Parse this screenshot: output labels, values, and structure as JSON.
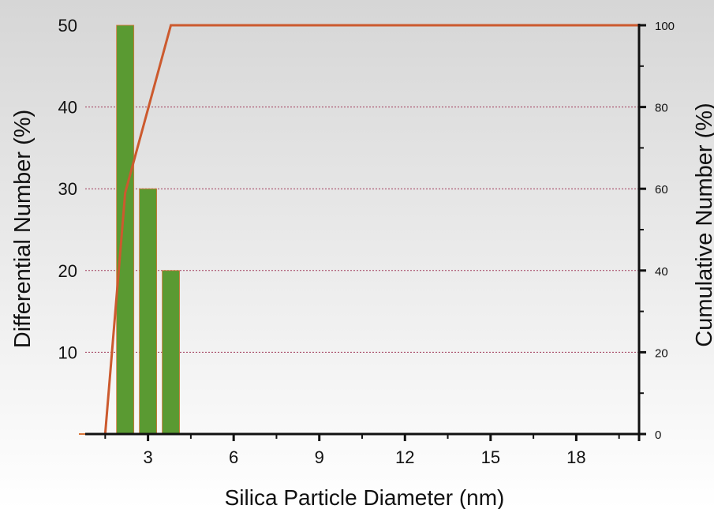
{
  "chart_data": {
    "type": "bar",
    "xlabel": "Silica Particle Diameter (nm)",
    "ylabel": "Differential Number (%)",
    "y2label": "Cumulative Number (%)",
    "xlim": [
      0.8,
      20.2
    ],
    "ylim": [
      0,
      50
    ],
    "y2lim": [
      0,
      100
    ],
    "x_ticks": [
      3,
      6,
      9,
      12,
      15,
      18
    ],
    "y_ticks": [
      10,
      20,
      30,
      40,
      50
    ],
    "y2_ticks": [
      0,
      20,
      40,
      60,
      80,
      100
    ],
    "grid": "horizontal dashed",
    "series": [
      {
        "kind": "bar",
        "axis": "left",
        "color": "#5a9a32",
        "x": [
          2.2,
          3.0,
          3.8
        ],
        "values": [
          50,
          30,
          20
        ]
      },
      {
        "kind": "line",
        "axis": "right",
        "color": "#cc5a2e",
        "x": [
          1.5,
          2.2,
          3.8,
          20.2
        ],
        "values": [
          0,
          59,
          100,
          100
        ]
      }
    ]
  },
  "colors": {
    "bar": "#5a9a32",
    "bar_edge": "#d9753a",
    "line": "#cc5a2e",
    "grid": "#a03a5a",
    "background_top": "#d5d5d5",
    "background_bottom": "#ffffff"
  }
}
